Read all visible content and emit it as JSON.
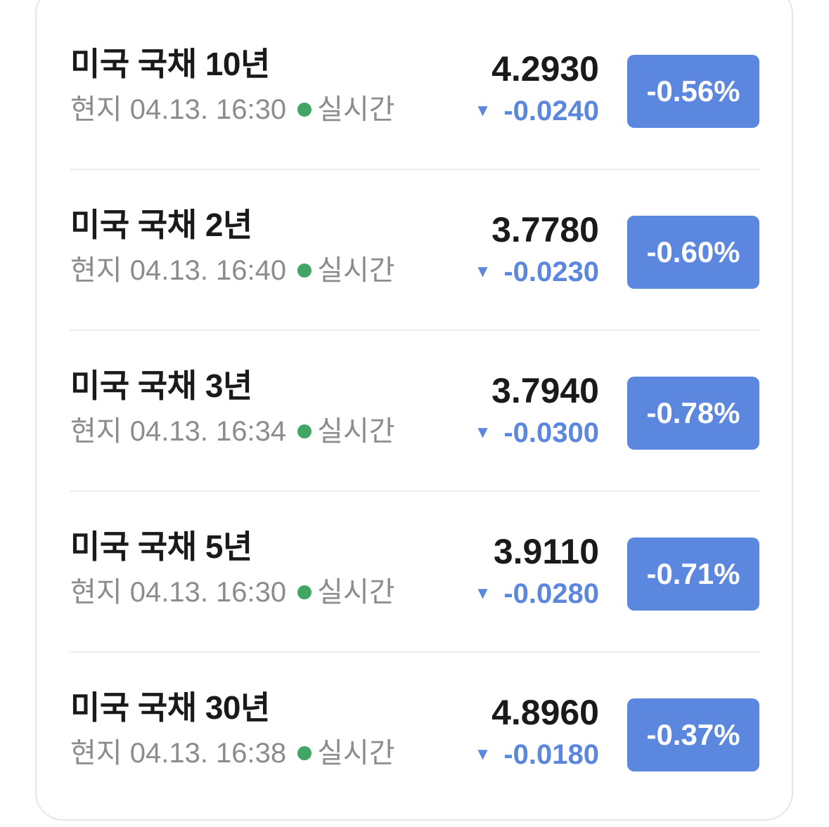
{
  "colors": {
    "down": "#5b87de",
    "live_dot": "#3fa663"
  },
  "items": [
    {
      "title": "미국 국채 10년",
      "local_label": "현지",
      "time": "04.13. 16:30",
      "live": "실시간",
      "price": "4.2930",
      "change": "-0.0240",
      "direction_icon": "triangle-down-icon",
      "percent": "-0.56%"
    },
    {
      "title": "미국 국채 2년",
      "local_label": "현지",
      "time": "04.13. 16:40",
      "live": "실시간",
      "price": "3.7780",
      "change": "-0.0230",
      "direction_icon": "triangle-down-icon",
      "percent": "-0.60%"
    },
    {
      "title": "미국 국채 3년",
      "local_label": "현지",
      "time": "04.13. 16:34",
      "live": "실시간",
      "price": "3.7940",
      "change": "-0.0300",
      "direction_icon": "triangle-down-icon",
      "percent": "-0.78%"
    },
    {
      "title": "미국 국채 5년",
      "local_label": "현지",
      "time": "04.13. 16:30",
      "live": "실시간",
      "price": "3.9110",
      "change": "-0.0280",
      "direction_icon": "triangle-down-icon",
      "percent": "-0.71%"
    },
    {
      "title": "미국 국채 30년",
      "local_label": "현지",
      "time": "04.13. 16:38",
      "live": "실시간",
      "price": "4.8960",
      "change": "-0.0180",
      "direction_icon": "triangle-down-icon",
      "percent": "-0.37%"
    }
  ]
}
